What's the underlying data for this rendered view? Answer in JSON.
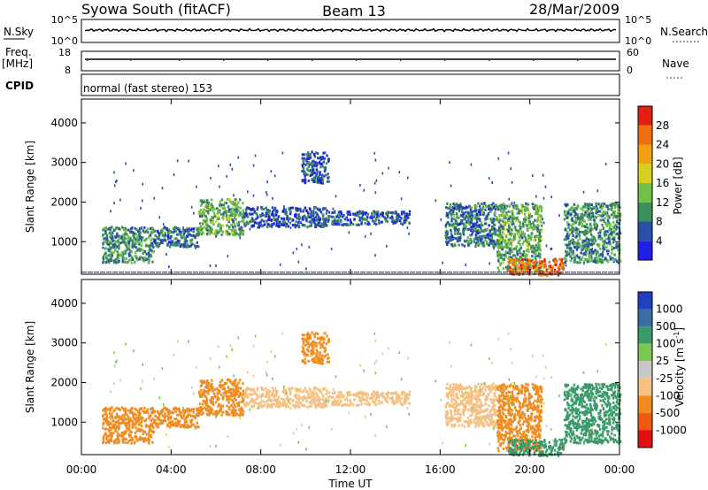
{
  "header": {
    "station": "Syowa South (fitACF)",
    "beam": "Beam 13",
    "date": "28/Mar/2009"
  },
  "strip": {
    "nsky_label": "N.Sky",
    "nsky_top": "10^5",
    "nsky_bottom": "10^0",
    "nsearch_label": "N.Search",
    "nsearch_top": "10^5",
    "nsearch_bottom": "10^0",
    "freq_label": "Freq.",
    "freq_unit": "[MHz]",
    "freq_top": "18",
    "freq_bottom": "8",
    "nave_label": "Nave",
    "nave_top": "60",
    "nave_bottom": "0",
    "cpid_label": "CPID",
    "cpid_text": "normal (fast stereo) 153"
  },
  "colors": {
    "power_scale": [
      "#1f1fe6",
      "#2a4fa8",
      "#3b8f5a",
      "#6fbf4a",
      "#d8d020",
      "#f0a010",
      "#f07010",
      "#e02010"
    ],
    "velocity_scale": [
      "#e01010",
      "#f05a10",
      "#f08c20",
      "#f5c080",
      "#c8c8c8",
      "#7ac850",
      "#3a9a6a",
      "#3a6ea0",
      "#2040c0"
    ]
  },
  "chart_data": [
    {
      "type": "heatmap",
      "title": "Power",
      "xlabel": "Time UT",
      "ylabel": "Slant Range [km]",
      "x_ticks": [
        "00:00",
        "04:00",
        "08:00",
        "12:00",
        "16:00",
        "20:00",
        "00:00"
      ],
      "y_ticks": [
        "1000",
        "2000",
        "3000",
        "4000"
      ],
      "ylim": [
        180,
        4600
      ],
      "xlim_hours": [
        0,
        24
      ],
      "colorbar_label": "Power [dB]",
      "colorbar_ticks": [
        "4",
        "8",
        "12",
        "16",
        "20",
        "24",
        "28"
      ],
      "colorbar_range": [
        0,
        32
      ],
      "scatter_regions": [
        {
          "t0": 0.9,
          "t1": 3.2,
          "r0": 500,
          "r1": 1400,
          "value": 10
        },
        {
          "t0": 3.2,
          "t1": 5.2,
          "r0": 900,
          "r1": 1400,
          "value": 8
        },
        {
          "t0": 5.2,
          "t1": 7.2,
          "r0": 1200,
          "r1": 2100,
          "value": 12
        },
        {
          "t0": 7.2,
          "t1": 11.0,
          "r0": 1400,
          "r1": 1900,
          "value": 6
        },
        {
          "t0": 11.0,
          "t1": 14.6,
          "r0": 1450,
          "r1": 1800,
          "value": 6
        },
        {
          "t0": 9.8,
          "t1": 11.0,
          "r0": 2500,
          "r1": 3300,
          "value": 6
        },
        {
          "t0": 16.2,
          "t1": 18.5,
          "r0": 900,
          "r1": 2000,
          "value": 8
        },
        {
          "t0": 18.5,
          "t1": 20.5,
          "r0": 300,
          "r1": 2000,
          "value": 12
        },
        {
          "t0": 19.0,
          "t1": 21.5,
          "r0": 180,
          "r1": 600,
          "value": 26
        },
        {
          "t0": 21.5,
          "t1": 24.0,
          "r0": 500,
          "r1": 2000,
          "value": 10
        }
      ]
    },
    {
      "type": "heatmap",
      "title": "Velocity",
      "xlabel": "Time UT",
      "ylabel": "Slant Range [km]",
      "x_ticks": [
        "00:00",
        "04:00",
        "08:00",
        "12:00",
        "16:00",
        "20:00",
        "00:00"
      ],
      "y_ticks": [
        "1000",
        "2000",
        "3000",
        "4000"
      ],
      "ylim": [
        180,
        4600
      ],
      "xlim_hours": [
        0,
        24
      ],
      "colorbar_label": "Velocity [m s-1]",
      "colorbar_ticks": [
        "1000",
        "500",
        "100",
        "25",
        "-25",
        "-100",
        "-500",
        "-1000"
      ],
      "scatter_regions": [
        {
          "t0": 0.9,
          "t1": 3.2,
          "r0": 500,
          "r1": 1400,
          "value": -300
        },
        {
          "t0": 3.2,
          "t1": 5.2,
          "r0": 900,
          "r1": 1400,
          "value": -300
        },
        {
          "t0": 5.2,
          "t1": 7.2,
          "r0": 1200,
          "r1": 2100,
          "value": -300
        },
        {
          "t0": 7.2,
          "t1": 11.0,
          "r0": 1400,
          "r1": 1900,
          "value": -60
        },
        {
          "t0": 11.0,
          "t1": 14.6,
          "r0": 1450,
          "r1": 1800,
          "value": -60
        },
        {
          "t0": 9.8,
          "t1": 11.0,
          "r0": 2500,
          "r1": 3300,
          "value": -200
        },
        {
          "t0": 16.2,
          "t1": 18.5,
          "r0": 900,
          "r1": 2000,
          "value": -60
        },
        {
          "t0": 18.5,
          "t1": 20.5,
          "r0": 300,
          "r1": 2000,
          "value": -300
        },
        {
          "t0": 19.0,
          "t1": 21.5,
          "r0": 180,
          "r1": 600,
          "value": 300
        },
        {
          "t0": 21.5,
          "t1": 24.0,
          "r0": 500,
          "r1": 2000,
          "value": 300
        }
      ]
    }
  ]
}
